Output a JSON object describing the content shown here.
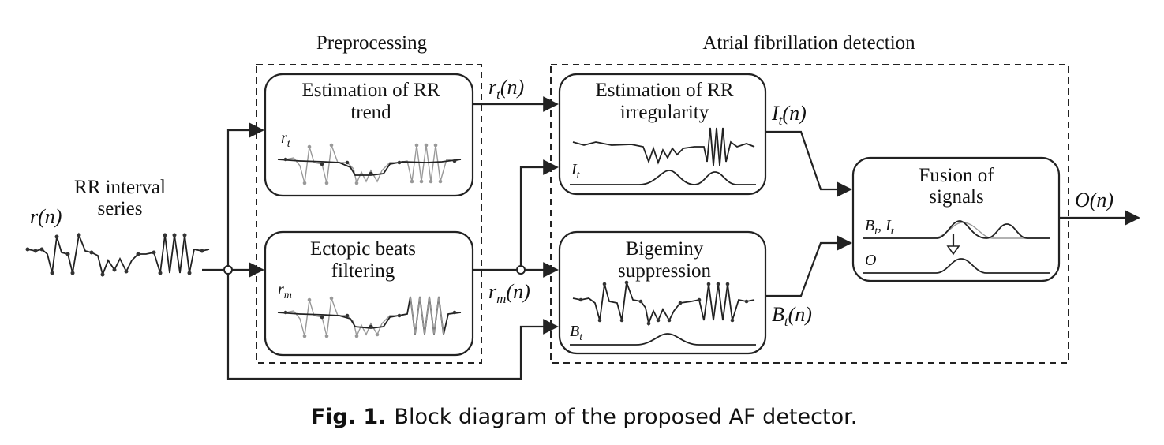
{
  "groups": {
    "preprocessing": "Preprocessing",
    "af_detection": "Atrial fibrillation detection"
  },
  "input": {
    "label_line1": "RR interval",
    "label_line2": "series",
    "symbol": "r(n)"
  },
  "blocks": {
    "rr_trend": {
      "line1": "Estimation of RR",
      "line2": "trend",
      "plot_label": "r",
      "plot_sub": "t"
    },
    "ectopic": {
      "line1": "Ectopic beats",
      "line2": "filtering",
      "plot_label": "r",
      "plot_sub": "m"
    },
    "irregularity": {
      "line1": "Estimation of RR",
      "line2": "irregularity",
      "plot_label": "I",
      "plot_sub": "t"
    },
    "bigeminy": {
      "line1": "Bigeminy",
      "line2": "suppression",
      "plot_label": "B",
      "plot_sub": "t"
    },
    "fusion": {
      "line1": "Fusion of",
      "line2": "signals",
      "plot_label1": "B",
      "plot_sub1": "t",
      "plot_label2": ", I",
      "plot_sub2": "t",
      "plot_label3": "O"
    }
  },
  "signals": {
    "rt_main": "r",
    "rt_sub": "t",
    "rt_arg": "(n)",
    "rm_main": "r",
    "rm_sub": "m",
    "rm_arg": "(n)",
    "it_main": "I",
    "it_sub": "t",
    "it_arg": "(n)",
    "bt_main": "B",
    "bt_sub": "t",
    "bt_arg": "(n)",
    "out": "O(n)"
  },
  "caption": {
    "bold": "Fig. 1.",
    "text": "Block diagram of the proposed AF detector."
  }
}
